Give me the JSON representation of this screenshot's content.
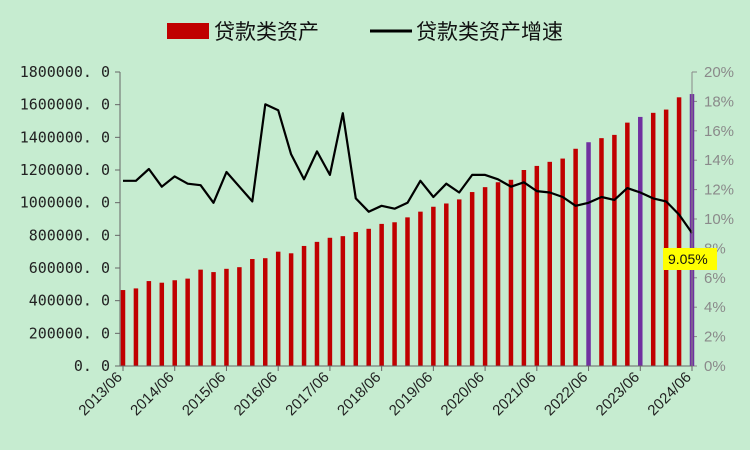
{
  "chart_data": {
    "type": "bar+line",
    "legend": {
      "position": "top-center",
      "items": [
        {
          "label": "贷款类资产",
          "kind": "bar",
          "color": "#c00000"
        },
        {
          "label": "贷款类资产增速",
          "kind": "line",
          "color": "#000000"
        }
      ]
    },
    "y_left": {
      "min": 0,
      "max": 1800000,
      "step": 200000,
      "tick_labels": [
        "0. 0",
        "200000. 0",
        "400000. 0",
        "600000. 0",
        "800000. 0",
        "1000000. 0",
        "1200000. 0",
        "1400000. 0",
        "1600000. 0",
        "1800000. 0"
      ]
    },
    "y_right": {
      "min": 0,
      "max": 20,
      "step": 2,
      "unit": "%",
      "tick_labels": [
        "0%",
        "2%",
        "4%",
        "6%",
        "8%",
        "10%",
        "12%",
        "14%",
        "16%",
        "18%",
        "20%"
      ]
    },
    "x_tick_labels": [
      "2013/06",
      "2014/06",
      "2015/06",
      "2016/06",
      "2017/06",
      "2018/06",
      "2019/06",
      "2020/06",
      "2021/06",
      "2022/06",
      "2023/06",
      "2024/06"
    ],
    "bar_color": "#c00000",
    "highlight_color": "#7030a0",
    "line_color": "#000000",
    "bars": [
      465000,
      475000,
      520000,
      510000,
      525000,
      535000,
      590000,
      575000,
      595000,
      605000,
      655000,
      660000,
      700000,
      690000,
      735000,
      760000,
      785000,
      795000,
      820000,
      840000,
      870000,
      880000,
      910000,
      945000,
      975000,
      995000,
      1020000,
      1065000,
      1095000,
      1125000,
      1140000,
      1200000,
      1225000,
      1250000,
      1270000,
      1330000,
      1370000,
      1395000,
      1415000,
      1490000,
      1525000,
      1550000,
      1570000,
      1645000,
      1665000
    ],
    "highlight_bars": [
      36,
      40,
      44
    ],
    "growth_pct": [
      12.6,
      12.6,
      13.4,
      12.2,
      12.9,
      12.4,
      12.3,
      11.1,
      13.2,
      12.2,
      11.2,
      17.8,
      17.4,
      14.4,
      12.7,
      14.6,
      13.0,
      17.2,
      11.4,
      10.5,
      10.9,
      10.7,
      11.1,
      12.6,
      11.5,
      12.4,
      11.8,
      13.0,
      13.0,
      12.7,
      12.2,
      12.5,
      11.9,
      11.8,
      11.5,
      10.9,
      11.1,
      11.5,
      11.3,
      12.1,
      11.8,
      11.4,
      11.2,
      10.3,
      9.05
    ],
    "annotation": {
      "text": "9.05%",
      "background": "#ffff00"
    }
  }
}
